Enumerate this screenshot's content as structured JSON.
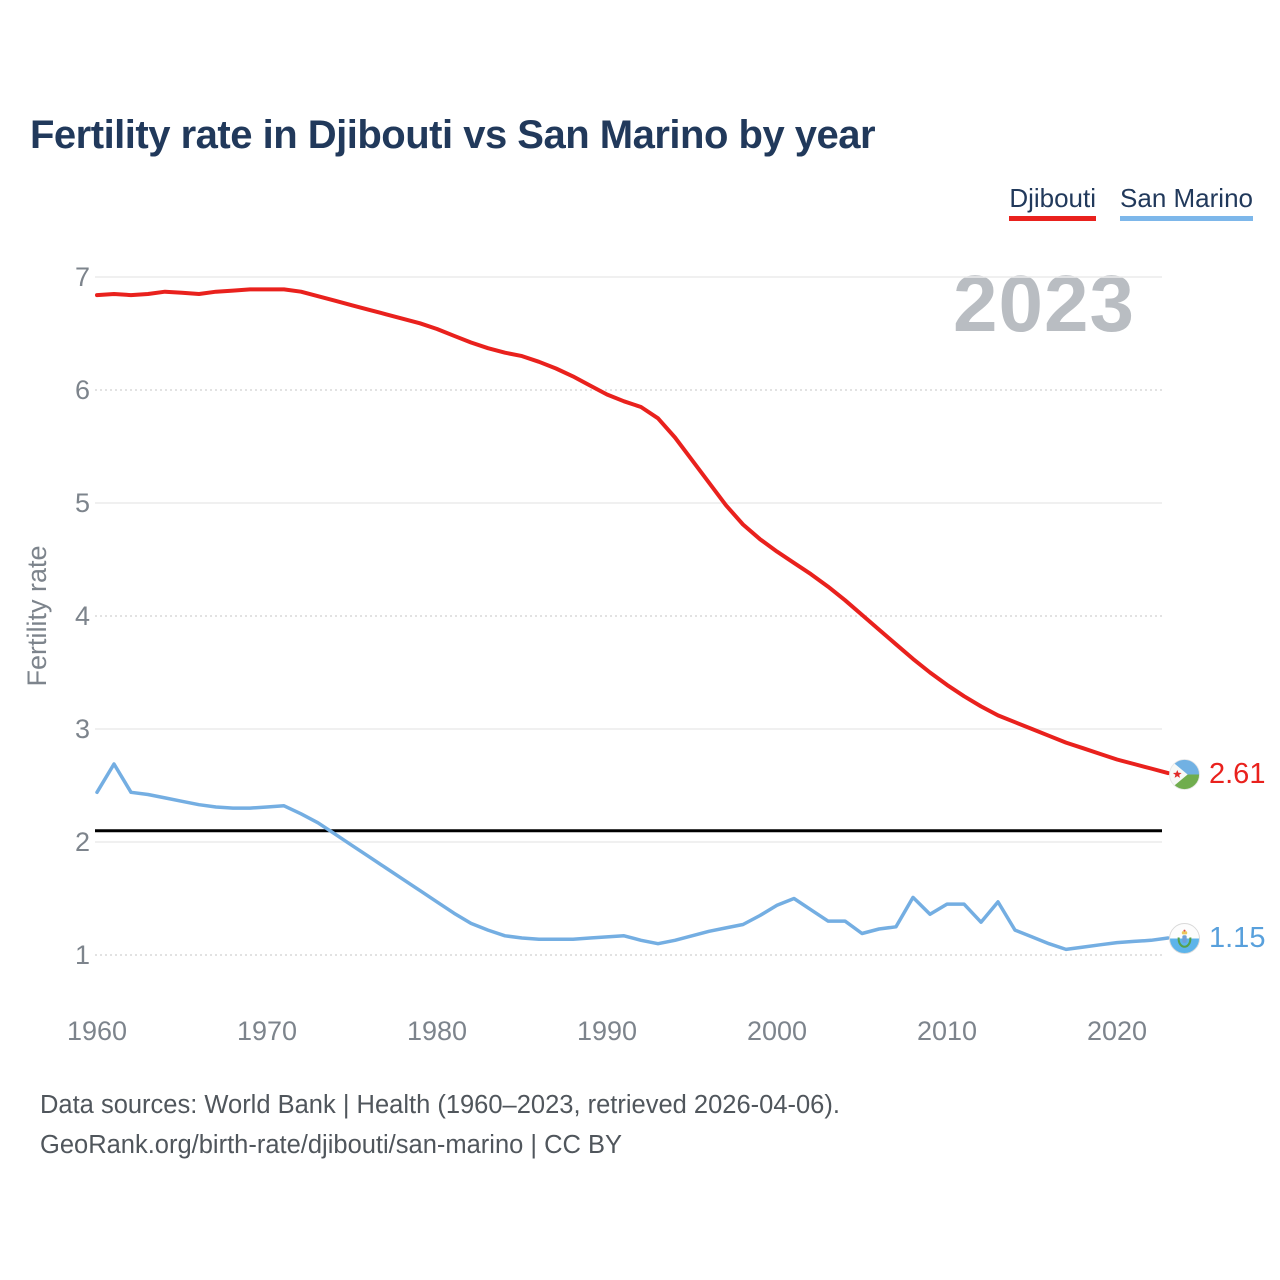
{
  "page": {
    "title": "Fertility rate in Djibouti vs San Marino by year",
    "watermark": "2023"
  },
  "legend": {
    "items": [
      {
        "label": "Djibouti",
        "color": "#e9211d"
      },
      {
        "label": "San Marino",
        "color": "#7db7ea"
      }
    ]
  },
  "axes": {
    "y_label": "Fertility rate",
    "y_ticks": [
      7,
      6,
      5,
      4,
      3,
      2,
      1
    ],
    "dotted_y_ticks": [
      6,
      4,
      1
    ],
    "x_ticks": [
      1960,
      1970,
      1980,
      1990,
      2000,
      2010,
      2020
    ],
    "y_range": [
      1,
      7
    ]
  },
  "reference_line": {
    "value": 2.1,
    "color": "#000000"
  },
  "end_labels": {
    "djibouti": {
      "value": "2.61",
      "color": "#e9211d"
    },
    "san_marino": {
      "value": "1.15",
      "color": "#58a0dc"
    }
  },
  "footer": {
    "line1": "Data sources: World Bank | Health (1960–2023, retrieved 2026-04-06).",
    "line2": "GeoRank.org/birth-rate/djibouti/san-marino | CC BY"
  },
  "chart_data": {
    "type": "line",
    "title": "Fertility rate in Djibouti vs San Marino by year",
    "ylabel": "Fertility rate",
    "x_start": 1960,
    "x_end": 2023,
    "ylim": [
      1,
      7
    ],
    "grid": true,
    "legend_position": "top-right",
    "series": [
      {
        "name": "Djibouti",
        "color": "#e9211d",
        "final_value": 2.61,
        "values": [
          6.84,
          6.85,
          6.84,
          6.85,
          6.87,
          6.86,
          6.85,
          6.87,
          6.88,
          6.89,
          6.89,
          6.89,
          6.87,
          6.83,
          6.79,
          6.75,
          6.71,
          6.67,
          6.63,
          6.59,
          6.54,
          6.48,
          6.42,
          6.37,
          6.33,
          6.3,
          6.25,
          6.19,
          6.12,
          6.04,
          5.96,
          5.9,
          5.85,
          5.75,
          5.58,
          5.38,
          5.18,
          4.98,
          4.81,
          4.68,
          4.57,
          4.47,
          4.37,
          4.26,
          4.14,
          4.01,
          3.88,
          3.75,
          3.62,
          3.5,
          3.39,
          3.29,
          3.2,
          3.12,
          3.06,
          3.0,
          2.94,
          2.88,
          2.83,
          2.78,
          2.73,
          2.69,
          2.65,
          2.61
        ]
      },
      {
        "name": "San Marino",
        "color": "#74aee2",
        "final_value": 1.15,
        "values": [
          2.44,
          2.69,
          2.44,
          2.42,
          2.39,
          2.36,
          2.33,
          2.31,
          2.3,
          2.3,
          2.31,
          2.32,
          2.25,
          2.17,
          2.07,
          1.97,
          1.87,
          1.77,
          1.67,
          1.57,
          1.47,
          1.37,
          1.28,
          1.22,
          1.17,
          1.15,
          1.14,
          1.14,
          1.14,
          1.15,
          1.16,
          1.17,
          1.13,
          1.1,
          1.13,
          1.17,
          1.21,
          1.24,
          1.27,
          1.35,
          1.44,
          1.5,
          1.4,
          1.3,
          1.3,
          1.19,
          1.23,
          1.25,
          1.51,
          1.36,
          1.45,
          1.45,
          1.29,
          1.47,
          1.22,
          1.16,
          1.1,
          1.05,
          1.07,
          1.09,
          1.11,
          1.12,
          1.13,
          1.15
        ]
      }
    ]
  }
}
